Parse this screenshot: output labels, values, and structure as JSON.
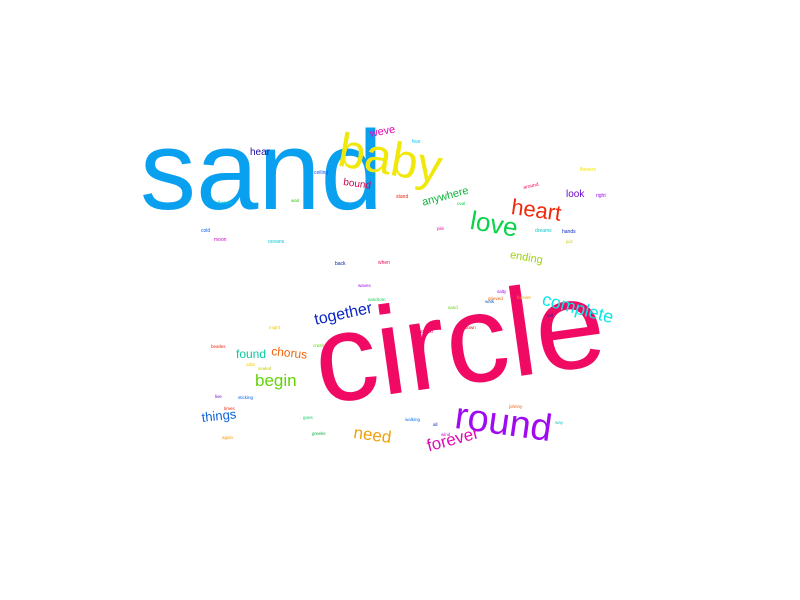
{
  "words": {
    "sand": {
      "text": "sand",
      "color": "#0aa0f0"
    },
    "baby": {
      "text": "baby",
      "color": "#f0e80a"
    },
    "circle": {
      "text": "circle",
      "color": "#f00a64"
    },
    "round": {
      "text": "round",
      "color": "#a00af0"
    },
    "heart": {
      "text": "heart",
      "color": "#f0280a"
    },
    "love": {
      "text": "love",
      "color": "#0ad24a"
    },
    "complete": {
      "text": "complete",
      "color": "#0ae6e6"
    },
    "together": {
      "text": "together",
      "color": "#0a28c8"
    },
    "forever": {
      "text": "forever",
      "color": "#e00ab4"
    },
    "need": {
      "text": "need",
      "color": "#f0a00a"
    },
    "begin": {
      "text": "begin",
      "color": "#64d20a"
    },
    "chorus": {
      "text": "chorus",
      "color": "#f0640a"
    },
    "found": {
      "text": "found",
      "color": "#0ac8a0"
    },
    "things": {
      "text": "things",
      "color": "#0a64dc"
    },
    "anywhere": {
      "text": "anywhere",
      "color": "#0ab43c"
    },
    "ending": {
      "text": "ending",
      "color": "#a0d20a"
    },
    "weve": {
      "text": "weve",
      "color": "#e00ab4"
    },
    "bound": {
      "text": "bound",
      "color": "#c80a50"
    },
    "hear": {
      "text": "hear",
      "color": "#1e0aa0"
    },
    "look": {
      "text": "look",
      "color": "#6e0ac8"
    }
  },
  "tiny_words": [
    {
      "key": "fear",
      "text": "fear",
      "color": "#0ac8f0"
    },
    {
      "key": "ceiling",
      "text": "ceiling",
      "color": "#0a50f0"
    },
    {
      "key": "flowers",
      "text": "flowers",
      "color": "#f0e60a"
    },
    {
      "key": "around",
      "text": "around",
      "color": "#f00a50"
    },
    {
      "key": "right",
      "text": "right",
      "color": "#a00af0"
    },
    {
      "key": "stand",
      "text": "stand",
      "color": "#f0280a"
    },
    {
      "key": "oval",
      "text": "oval",
      "color": "#0ad250"
    },
    {
      "key": "flowers2",
      "text": "flowers",
      "color": "#0ad2c8"
    },
    {
      "key": "wait",
      "text": "wait",
      "color": "#32c80a"
    },
    {
      "key": "dreams",
      "text": "dreams",
      "color": "#0ac8c8"
    },
    {
      "key": "hands",
      "text": "hands",
      "color": "#0a28c8"
    },
    {
      "key": "pile",
      "text": "pile",
      "color": "#f00aa0"
    },
    {
      "key": "cold",
      "text": "cold",
      "color": "#0a64f0"
    },
    {
      "key": "moon",
      "text": "moon",
      "color": "#c80ac8"
    },
    {
      "key": "oceans",
      "text": "oceans",
      "color": "#0ac8d2"
    },
    {
      "key": "back",
      "text": "back",
      "color": "#0a28a0"
    },
    {
      "key": "when",
      "text": "when",
      "color": "#f00a64"
    },
    {
      "key": "juiz",
      "text": "juiz",
      "color": "#c8d20a"
    },
    {
      "key": "waves",
      "text": "waves",
      "color": "#a00af0"
    },
    {
      "key": "sandrom",
      "text": "sandrom",
      "color": "#0ad250"
    },
    {
      "key": "salty",
      "text": "salty",
      "color": "#a00af0"
    },
    {
      "key": "grieved",
      "text": "grieved",
      "color": "#f0640a"
    },
    {
      "key": "forever2",
      "text": "forever",
      "color": "#f0a00a"
    },
    {
      "key": "walk",
      "text": "walk",
      "color": "#0a64c8"
    },
    {
      "key": "sand2",
      "text": "sand",
      "color": "#64d20a"
    },
    {
      "key": "tell",
      "text": "tell",
      "color": "#0a28a0"
    },
    {
      "key": "might",
      "text": "might",
      "color": "#f0c80a"
    },
    {
      "key": "shattered",
      "text": "shattered",
      "color": "#f00a64"
    },
    {
      "key": "down",
      "text": "down",
      "color": "#e00a1e"
    },
    {
      "key": "beatles",
      "text": "beatles",
      "color": "#f0280a"
    },
    {
      "key": "crash",
      "text": "crash",
      "color": "#64d20a"
    },
    {
      "key": "orbit",
      "text": "orbit",
      "color": "#f0c80a"
    },
    {
      "key": "sealed",
      "text": "sealed",
      "color": "#c8c80a"
    },
    {
      "key": "live",
      "text": "live",
      "color": "#6e0ac8"
    },
    {
      "key": "sticking",
      "text": "sticking",
      "color": "#0a64f0"
    },
    {
      "key": "times",
      "text": "times",
      "color": "#f0280a"
    },
    {
      "key": "johnny",
      "text": "johnny",
      "color": "#f0640a"
    },
    {
      "key": "goes",
      "text": "goes",
      "color": "#0ad264"
    },
    {
      "key": "walking",
      "text": "walking",
      "color": "#0a78f0"
    },
    {
      "key": "all",
      "text": "all",
      "color": "#0a28c8"
    },
    {
      "key": "way",
      "text": "way",
      "color": "#0ac8c8"
    },
    {
      "key": "greeks",
      "text": "greeks",
      "color": "#0ab43c"
    },
    {
      "key": "wind",
      "text": "wind",
      "color": "#c80ac8"
    },
    {
      "key": "again",
      "text": "again",
      "color": "#f0a00a"
    }
  ]
}
